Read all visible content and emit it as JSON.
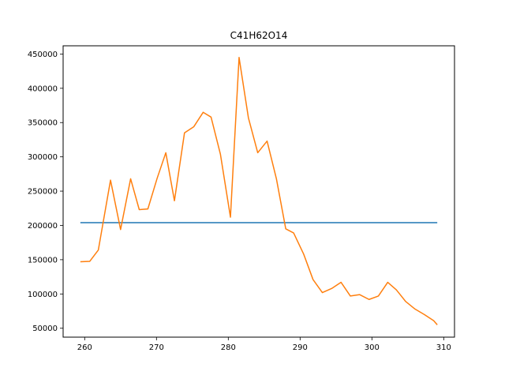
{
  "chart_data": {
    "type": "line",
    "title": "C41H62O14",
    "xlabel": "",
    "ylabel": "",
    "xlim": [
      257,
      311.5
    ],
    "ylim": [
      37000,
      462000
    ],
    "grid": false,
    "legend": "none",
    "x_ticks": [
      260,
      270,
      280,
      290,
      300,
      310
    ],
    "y_ticks": [
      50000,
      100000,
      150000,
      200000,
      250000,
      300000,
      350000,
      400000,
      450000
    ],
    "series": [
      {
        "color": "#1f77b4",
        "x": [
          259.4,
          309.1
        ],
        "y": [
          204000,
          204000
        ]
      },
      {
        "color": "#ff7f0e",
        "x": [
          259.4,
          260.7,
          261.9,
          263.6,
          265.0,
          266.4,
          267.6,
          268.8,
          270.1,
          271.3,
          272.5,
          273.9,
          275.2,
          276.5,
          277.6,
          278.9,
          280.3,
          281.5,
          282.8,
          284.1,
          285.4,
          286.7,
          288.0,
          289.1,
          290.5,
          291.8,
          293.1,
          294.4,
          295.7,
          297.0,
          298.3,
          299.6,
          300.9,
          302.2,
          303.4,
          304.7,
          306.0,
          307.3,
          308.6,
          309.1
        ],
        "y": [
          147000,
          147500,
          164000,
          266000,
          194000,
          268000,
          223000,
          224000,
          269000,
          306000,
          236000,
          335000,
          344000,
          365000,
          358000,
          304000,
          212000,
          445000,
          357000,
          306000,
          323000,
          268000,
          195000,
          189000,
          158000,
          121000,
          102000,
          108000,
          117000,
          97000,
          99000,
          92000,
          97000,
          117000,
          106000,
          89000,
          78000,
          70000,
          61000,
          55000
        ]
      }
    ]
  }
}
